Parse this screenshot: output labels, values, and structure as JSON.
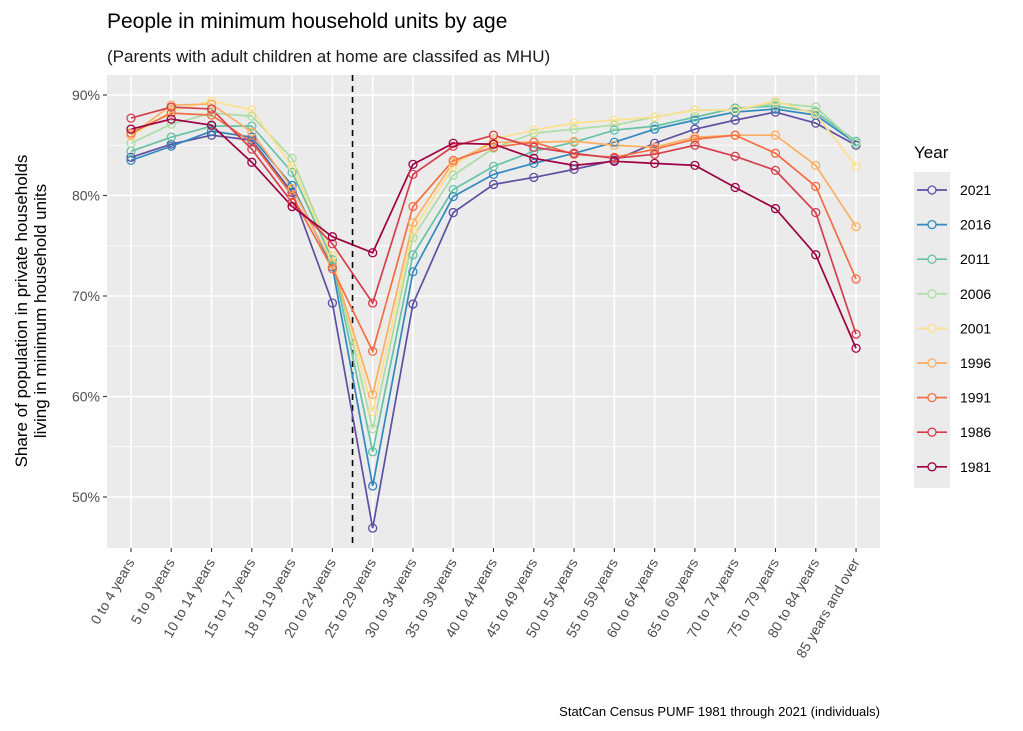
{
  "chart_data": {
    "type": "line",
    "title": "People in minimum household units by age",
    "subtitle": "(Parents with adult children at home are classifed as MHU)",
    "xlabel": "",
    "ylabel": "Share of population in private households\nliving in minimum household units",
    "ylabel_lines": [
      "Share of population in private households",
      "living in minimum household units"
    ],
    "caption": "StatCan Census PUMF 1981 through 2021 (individuals)",
    "ylim": [
      45,
      91.5
    ],
    "yticks": [
      50,
      60,
      70,
      80,
      90
    ],
    "ytick_labels": [
      "50%",
      "60%",
      "70%",
      "80%",
      "90%"
    ],
    "grid": true,
    "legend": {
      "title": "Year",
      "placement": "right"
    },
    "vline_after_category": "20 to 24 years",
    "vline_style": "dashed",
    "categories": [
      "0 to 4 years",
      "5 to 9 years",
      "10 to 14 years",
      "15 to 17 years",
      "18 to 19 years",
      "20 to 24 years",
      "25 to 29 years",
      "30 to 34 years",
      "35 to 39 years",
      "40 to 44 years",
      "45 to 49 years",
      "50 to 54 years",
      "55 to 59 years",
      "60 to 64 years",
      "65 to 69 years",
      "70 to 74 years",
      "75 to 79 years",
      "80 to 84 years",
      "85 years and over"
    ],
    "series": [
      {
        "name": "2021",
        "color": "#5e4fa2",
        "values": [
          83.8,
          85.1,
          86.0,
          85.5,
          80.3,
          69.3,
          46.9,
          69.2,
          78.3,
          81.1,
          81.8,
          82.6,
          83.5,
          85.2,
          86.6,
          87.5,
          88.3,
          87.2,
          85.0
        ]
      },
      {
        "name": "2016",
        "color": "#3288bd",
        "values": [
          83.5,
          84.9,
          86.4,
          85.8,
          81.0,
          72.9,
          51.1,
          72.4,
          79.9,
          82.1,
          83.2,
          84.2,
          85.3,
          86.6,
          87.5,
          88.3,
          88.6,
          88.0,
          85.2
        ]
      },
      {
        "name": "2011",
        "color": "#66c2a5",
        "values": [
          84.4,
          85.8,
          86.9,
          86.9,
          82.3,
          73.6,
          54.5,
          74.1,
          80.6,
          82.9,
          84.4,
          85.3,
          86.5,
          86.9,
          87.8,
          88.7,
          88.9,
          88.3,
          85.4
        ]
      },
      {
        "name": "2006",
        "color": "#abdda4",
        "values": [
          85.2,
          87.1,
          88.2,
          87.9,
          83.7,
          74.0,
          56.8,
          75.8,
          82.0,
          84.7,
          86.2,
          86.6,
          87.0,
          87.8,
          88.5,
          88.5,
          89.2,
          88.8,
          85.2
        ]
      },
      {
        "name": "2001",
        "color": "#fee08b",
        "values": [
          85.9,
          88.4,
          89.4,
          88.5,
          82.9,
          74.0,
          58.5,
          76.5,
          82.9,
          85.6,
          86.5,
          87.2,
          87.5,
          87.8,
          88.5,
          88.5,
          89.4,
          88.1,
          82.9
        ]
      },
      {
        "name": "1996",
        "color": "#fdae61",
        "values": [
          86.0,
          89.0,
          89.1,
          86.3,
          80.7,
          73.2,
          60.2,
          77.3,
          83.3,
          85.3,
          85.3,
          85.4,
          85.0,
          84.8,
          85.8,
          86.0,
          86.0,
          83.0,
          76.9
        ]
      },
      {
        "name": "1991",
        "color": "#f46d43",
        "values": [
          86.2,
          88.2,
          88.0,
          85.3,
          80.0,
          72.7,
          64.5,
          78.9,
          83.5,
          84.8,
          85.3,
          84.1,
          83.8,
          84.6,
          85.6,
          86.0,
          84.2,
          80.9,
          71.7
        ]
      },
      {
        "name": "1986",
        "color": "#d53e4f",
        "values": [
          87.7,
          88.8,
          88.6,
          84.6,
          79.3,
          75.2,
          69.3,
          82.1,
          84.9,
          86.0,
          84.8,
          84.2,
          83.7,
          84.1,
          85.0,
          83.9,
          82.5,
          78.3,
          66.2
        ]
      },
      {
        "name": "1981",
        "color": "#9e0142",
        "values": [
          86.6,
          87.6,
          87.0,
          83.3,
          78.9,
          75.9,
          74.3,
          83.1,
          85.2,
          85.1,
          83.7,
          83.0,
          83.4,
          83.2,
          83.0,
          80.8,
          78.7,
          74.1,
          64.8
        ]
      }
    ]
  }
}
